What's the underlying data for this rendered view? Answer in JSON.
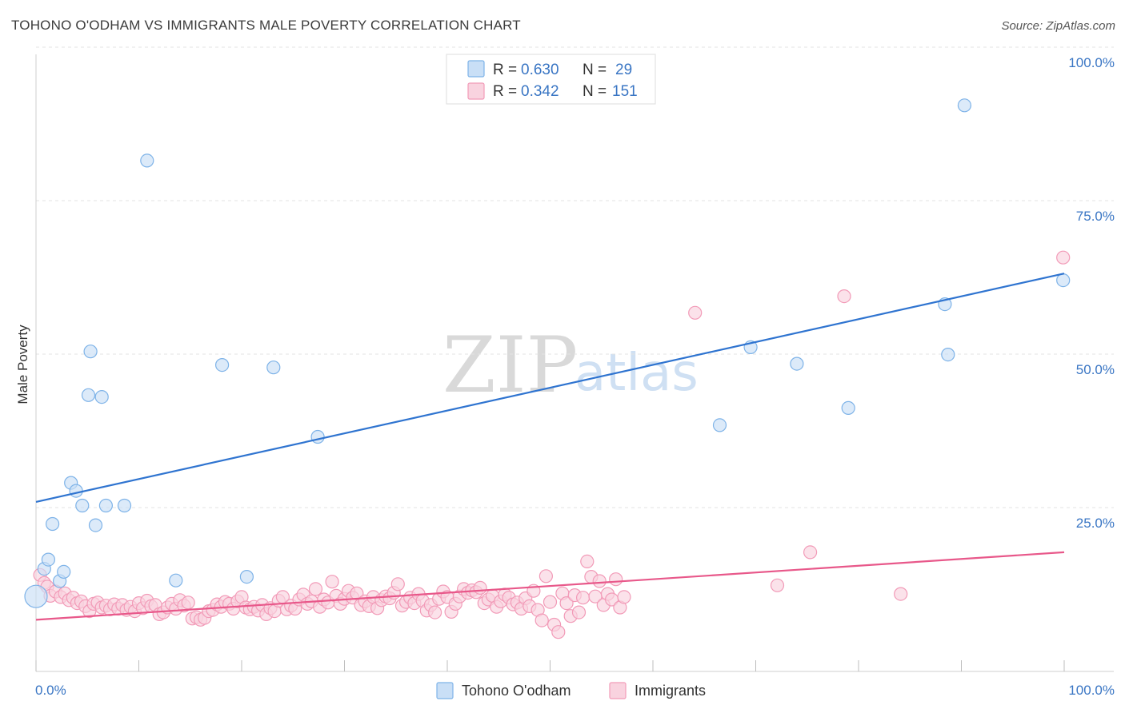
{
  "title": "TOHONO O'ODHAM VS IMMIGRANTS MALE POVERTY CORRELATION CHART",
  "source": "Source: ZipAtlas.com",
  "colors": {
    "blue": "#7eb3e8",
    "blue_fill": "#c9dff6",
    "blue_line": "#2f74d0",
    "pink": "#f29bb8",
    "pink_fill": "#f9d3df",
    "pink_line": "#e8588a",
    "tick_text": "#3a76c4"
  },
  "legend": {
    "rows": [
      {
        "r_label": "R =",
        "r_value": "0.630",
        "n_label": "N =",
        "n_value": "29"
      },
      {
        "r_label": "R =",
        "r_value": "0.342",
        "n_label": "N =",
        "n_value": "151"
      }
    ]
  },
  "watermark": {
    "zip": "ZIP",
    "atlas": "atlas"
  },
  "chart_data": {
    "type": "scatter",
    "title": "TOHONO O'ODHAM VS IMMIGRANTS MALE POVERTY CORRELATION CHART",
    "xlabel": "",
    "ylabel": "Male Poverty",
    "xlim": [
      0,
      100
    ],
    "ylim": [
      0,
      100
    ],
    "x_tick_labels": [
      "0.0%",
      "100.0%"
    ],
    "y_tick_labels": [
      "100.0%",
      "75.0%",
      "50.0%",
      "25.0%"
    ],
    "y_tick_values": [
      100,
      75,
      50,
      25
    ],
    "grid": "horizontal dashed",
    "legend_position": "top-center",
    "series": [
      {
        "name": "Tohono O'odham",
        "color": "#7eb3e8",
        "trend": {
          "x": [
            0,
            100
          ],
          "y": [
            28.4,
            65.6
          ]
        },
        "points": [
          {
            "x": 0.0,
            "y": 13.0
          },
          {
            "x": 0.8,
            "y": 17.5
          },
          {
            "x": 1.2,
            "y": 19.0
          },
          {
            "x": 1.6,
            "y": 24.8
          },
          {
            "x": 2.3,
            "y": 15.5
          },
          {
            "x": 2.7,
            "y": 17.0
          },
          {
            "x": 3.4,
            "y": 31.5
          },
          {
            "x": 3.9,
            "y": 30.2
          },
          {
            "x": 4.5,
            "y": 27.8
          },
          {
            "x": 5.1,
            "y": 45.8
          },
          {
            "x": 5.3,
            "y": 52.9
          },
          {
            "x": 5.8,
            "y": 24.6
          },
          {
            "x": 6.4,
            "y": 45.5
          },
          {
            "x": 6.8,
            "y": 27.8
          },
          {
            "x": 8.6,
            "y": 27.8
          },
          {
            "x": 10.8,
            "y": 84.0
          },
          {
            "x": 13.6,
            "y": 15.6
          },
          {
            "x": 18.1,
            "y": 50.7
          },
          {
            "x": 20.5,
            "y": 16.2
          },
          {
            "x": 23.1,
            "y": 50.3
          },
          {
            "x": 27.4,
            "y": 39.0
          },
          {
            "x": 66.5,
            "y": 40.9
          },
          {
            "x": 69.5,
            "y": 53.6
          },
          {
            "x": 74.0,
            "y": 50.9
          },
          {
            "x": 79.0,
            "y": 43.7
          },
          {
            "x": 88.4,
            "y": 60.6
          },
          {
            "x": 88.7,
            "y": 52.4
          },
          {
            "x": 90.3,
            "y": 93.0
          },
          {
            "x": 99.9,
            "y": 64.5
          }
        ]
      },
      {
        "name": "Immigrants",
        "color": "#f29bb8",
        "trend": {
          "x": [
            0,
            100
          ],
          "y": [
            9.2,
            20.2
          ]
        },
        "points": [
          {
            "x": 0.4,
            "y": 16.5
          },
          {
            "x": 0.8,
            "y": 15.2
          },
          {
            "x": 1.1,
            "y": 14.6
          },
          {
            "x": 1.4,
            "y": 13.1
          },
          {
            "x": 1.9,
            "y": 13.8
          },
          {
            "x": 2.4,
            "y": 12.9
          },
          {
            "x": 2.8,
            "y": 13.5
          },
          {
            "x": 3.2,
            "y": 12.4
          },
          {
            "x": 3.6,
            "y": 12.8
          },
          {
            "x": 4.0,
            "y": 11.9
          },
          {
            "x": 4.4,
            "y": 12.2
          },
          {
            "x": 4.8,
            "y": 11.4
          },
          {
            "x": 5.2,
            "y": 10.6
          },
          {
            "x": 5.6,
            "y": 11.8
          },
          {
            "x": 6.0,
            "y": 12.0
          },
          {
            "x": 6.4,
            "y": 11.2
          },
          {
            "x": 6.8,
            "y": 11.5
          },
          {
            "x": 7.2,
            "y": 10.9
          },
          {
            "x": 7.6,
            "y": 11.7
          },
          {
            "x": 8.0,
            "y": 11.0
          },
          {
            "x": 8.4,
            "y": 11.6
          },
          {
            "x": 8.8,
            "y": 10.8
          },
          {
            "x": 9.2,
            "y": 11.3
          },
          {
            "x": 9.6,
            "y": 10.6
          },
          {
            "x": 10.0,
            "y": 11.9
          },
          {
            "x": 10.4,
            "y": 11.1
          },
          {
            "x": 10.8,
            "y": 12.3
          },
          {
            "x": 11.2,
            "y": 11.4
          },
          {
            "x": 11.6,
            "y": 11.6
          },
          {
            "x": 12.0,
            "y": 10.1
          },
          {
            "x": 12.4,
            "y": 10.4
          },
          {
            "x": 12.8,
            "y": 11.2
          },
          {
            "x": 13.2,
            "y": 11.8
          },
          {
            "x": 13.6,
            "y": 11.0
          },
          {
            "x": 14.0,
            "y": 12.4
          },
          {
            "x": 14.4,
            "y": 11.5
          },
          {
            "x": 14.8,
            "y": 12.0
          },
          {
            "x": 15.2,
            "y": 9.4
          },
          {
            "x": 15.6,
            "y": 9.6
          },
          {
            "x": 16.0,
            "y": 9.2
          },
          {
            "x": 16.4,
            "y": 9.5
          },
          {
            "x": 16.8,
            "y": 10.6
          },
          {
            "x": 17.2,
            "y": 10.8
          },
          {
            "x": 17.6,
            "y": 11.7
          },
          {
            "x": 18.0,
            "y": 11.3
          },
          {
            "x": 18.4,
            "y": 12.1
          },
          {
            "x": 18.8,
            "y": 11.8
          },
          {
            "x": 19.2,
            "y": 11.0
          },
          {
            "x": 19.6,
            "y": 12.2
          },
          {
            "x": 20.0,
            "y": 12.9
          },
          {
            "x": 20.4,
            "y": 11.2
          },
          {
            "x": 20.8,
            "y": 10.9
          },
          {
            "x": 21.2,
            "y": 11.3
          },
          {
            "x": 21.6,
            "y": 10.7
          },
          {
            "x": 22.0,
            "y": 11.6
          },
          {
            "x": 22.4,
            "y": 10.1
          },
          {
            "x": 22.8,
            "y": 11.1
          },
          {
            "x": 23.2,
            "y": 10.6
          },
          {
            "x": 23.6,
            "y": 12.3
          },
          {
            "x": 24.0,
            "y": 12.9
          },
          {
            "x": 24.4,
            "y": 10.9
          },
          {
            "x": 24.8,
            "y": 11.5
          },
          {
            "x": 25.2,
            "y": 11.0
          },
          {
            "x": 25.6,
            "y": 12.5
          },
          {
            "x": 26.0,
            "y": 13.3
          },
          {
            "x": 26.4,
            "y": 11.8
          },
          {
            "x": 26.8,
            "y": 12.2
          },
          {
            "x": 27.2,
            "y": 14.2
          },
          {
            "x": 27.6,
            "y": 11.3
          },
          {
            "x": 28.0,
            "y": 12.5
          },
          {
            "x": 28.4,
            "y": 12.0
          },
          {
            "x": 28.8,
            "y": 15.4
          },
          {
            "x": 29.2,
            "y": 13.1
          },
          {
            "x": 29.6,
            "y": 11.8
          },
          {
            "x": 30.0,
            "y": 12.6
          },
          {
            "x": 30.4,
            "y": 13.9
          },
          {
            "x": 30.8,
            "y": 12.8
          },
          {
            "x": 31.2,
            "y": 13.5
          },
          {
            "x": 31.6,
            "y": 11.6
          },
          {
            "x": 32.0,
            "y": 12.2
          },
          {
            "x": 32.4,
            "y": 11.4
          },
          {
            "x": 32.8,
            "y": 12.9
          },
          {
            "x": 33.2,
            "y": 11.1
          },
          {
            "x": 33.6,
            "y": 12.4
          },
          {
            "x": 34.0,
            "y": 13.0
          },
          {
            "x": 34.4,
            "y": 12.7
          },
          {
            "x": 34.8,
            "y": 13.6
          },
          {
            "x": 35.2,
            "y": 15.0
          },
          {
            "x": 35.6,
            "y": 11.5
          },
          {
            "x": 36.0,
            "y": 12.1
          },
          {
            "x": 36.4,
            "y": 12.8
          },
          {
            "x": 36.8,
            "y": 11.9
          },
          {
            "x": 37.2,
            "y": 13.4
          },
          {
            "x": 37.6,
            "y": 12.3
          },
          {
            "x": 38.0,
            "y": 10.7
          },
          {
            "x": 38.4,
            "y": 11.6
          },
          {
            "x": 38.8,
            "y": 10.4
          },
          {
            "x": 39.2,
            "y": 12.6
          },
          {
            "x": 39.6,
            "y": 13.8
          },
          {
            "x": 40.0,
            "y": 12.9
          },
          {
            "x": 40.4,
            "y": 10.5
          },
          {
            "x": 40.8,
            "y": 11.8
          },
          {
            "x": 41.2,
            "y": 13.0
          },
          {
            "x": 41.6,
            "y": 14.2
          },
          {
            "x": 42.0,
            "y": 13.6
          },
          {
            "x": 42.4,
            "y": 14.0
          },
          {
            "x": 42.8,
            "y": 13.7
          },
          {
            "x": 43.2,
            "y": 14.4
          },
          {
            "x": 43.6,
            "y": 11.9
          },
          {
            "x": 44.0,
            "y": 12.5
          },
          {
            "x": 44.4,
            "y": 13.1
          },
          {
            "x": 44.8,
            "y": 11.3
          },
          {
            "x": 45.2,
            "y": 12.2
          },
          {
            "x": 45.6,
            "y": 13.3
          },
          {
            "x": 46.0,
            "y": 12.8
          },
          {
            "x": 46.4,
            "y": 11.7
          },
          {
            "x": 46.8,
            "y": 12.0
          },
          {
            "x": 47.2,
            "y": 11.0
          },
          {
            "x": 47.6,
            "y": 12.7
          },
          {
            "x": 48.0,
            "y": 11.4
          },
          {
            "x": 48.4,
            "y": 13.9
          },
          {
            "x": 48.8,
            "y": 10.8
          },
          {
            "x": 49.2,
            "y": 9.1
          },
          {
            "x": 49.6,
            "y": 16.3
          },
          {
            "x": 50.0,
            "y": 12.1
          },
          {
            "x": 50.4,
            "y": 8.4
          },
          {
            "x": 50.8,
            "y": 7.2
          },
          {
            "x": 51.2,
            "y": 13.5
          },
          {
            "x": 51.6,
            "y": 11.9
          },
          {
            "x": 52.0,
            "y": 9.8
          },
          {
            "x": 52.4,
            "y": 13.2
          },
          {
            "x": 52.8,
            "y": 10.4
          },
          {
            "x": 53.2,
            "y": 12.8
          },
          {
            "x": 53.6,
            "y": 18.7
          },
          {
            "x": 54.0,
            "y": 16.2
          },
          {
            "x": 54.4,
            "y": 13.0
          },
          {
            "x": 54.8,
            "y": 15.5
          },
          {
            "x": 55.2,
            "y": 11.6
          },
          {
            "x": 55.6,
            "y": 13.4
          },
          {
            "x": 56.0,
            "y": 12.5
          },
          {
            "x": 56.4,
            "y": 15.8
          },
          {
            "x": 56.8,
            "y": 11.2
          },
          {
            "x": 57.2,
            "y": 12.9
          },
          {
            "x": 64.1,
            "y": 59.2
          },
          {
            "x": 72.1,
            "y": 14.8
          },
          {
            "x": 75.3,
            "y": 20.2
          },
          {
            "x": 78.6,
            "y": 61.9
          },
          {
            "x": 84.1,
            "y": 13.4
          },
          {
            "x": 99.9,
            "y": 68.2
          }
        ]
      }
    ]
  },
  "bottom_legend": [
    {
      "label": "Tohono O'odham"
    },
    {
      "label": "Immigrants"
    }
  ]
}
